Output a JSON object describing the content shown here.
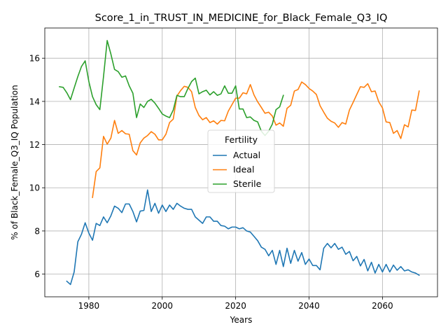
{
  "chart_data": {
    "type": "line",
    "title": "Score_1_in_TRUST_IN_MEDICINE_for_Black_Female_Q3_IQ",
    "xlabel": "Years",
    "ylabel": "% of Black_Female_Q3_IQ Population",
    "xlim": [
      1968,
      2075
    ],
    "ylim": [
      4.95,
      17.4
    ],
    "xticks": [
      1980,
      2000,
      2020,
      2040,
      2060
    ],
    "yticks": [
      6,
      8,
      10,
      12,
      14,
      16
    ],
    "grid": true,
    "legend": {
      "title": "Fertility",
      "placement": "center-right"
    },
    "series": [
      {
        "name": "Actual",
        "color": "#1f77b4",
        "x": [
          1974,
          1975,
          1976,
          1977,
          1978,
          1979,
          1980,
          1981,
          1982,
          1983,
          1984,
          1985,
          1986,
          1987,
          1988,
          1989,
          1990,
          1991,
          1992,
          1993,
          1994,
          1995,
          1996,
          1997,
          1998,
          1999,
          2000,
          2001,
          2002,
          2003,
          2004,
          2005,
          2006,
          2007,
          2008,
          2009,
          2010,
          2011,
          2012,
          2013,
          2014,
          2015,
          2016,
          2017,
          2018,
          2019,
          2020,
          2021,
          2022,
          2023,
          2024,
          2025,
          2026,
          2027,
          2028,
          2029,
          2030,
          2031,
          2032,
          2033,
          2034,
          2035,
          2036,
          2037,
          2038,
          2039,
          2040,
          2041,
          2042,
          2043,
          2044,
          2045,
          2046,
          2047,
          2048,
          2049,
          2050,
          2051,
          2052,
          2053,
          2054,
          2055,
          2056,
          2057,
          2058,
          2059,
          2060,
          2061,
          2062,
          2063,
          2064,
          2065,
          2066,
          2067,
          2068,
          2069,
          2070
        ],
        "values": [
          5.67,
          5.52,
          6.1,
          7.5,
          7.85,
          8.38,
          7.9,
          7.57,
          8.35,
          8.25,
          8.65,
          8.38,
          8.7,
          9.15,
          9.05,
          8.85,
          9.25,
          9.25,
          8.9,
          8.42,
          8.92,
          8.95,
          9.9,
          8.9,
          9.28,
          8.82,
          9.2,
          8.9,
          9.2,
          9.0,
          9.28,
          9.15,
          9.05,
          9.0,
          9.0,
          8.65,
          8.5,
          8.35,
          8.65,
          8.65,
          8.45,
          8.45,
          8.25,
          8.22,
          8.1,
          8.18,
          8.18,
          8.1,
          8.15,
          8.0,
          7.95,
          7.75,
          7.55,
          7.25,
          7.15,
          6.85,
          7.1,
          6.45,
          7.1,
          6.35,
          7.2,
          6.5,
          7.1,
          6.6,
          7.0,
          6.45,
          6.7,
          6.4,
          6.4,
          6.2,
          7.2,
          7.42,
          7.22,
          7.42,
          7.15,
          7.25,
          6.92,
          7.05,
          6.62,
          6.82,
          6.38,
          6.68,
          6.15,
          6.55,
          6.05,
          6.45,
          6.1,
          6.45,
          6.1,
          6.42,
          6.18,
          6.35,
          6.15,
          6.2,
          6.1,
          6.05,
          5.95
        ]
      },
      {
        "name": "Ideal",
        "color": "#ff7f0e",
        "x": [
          1981,
          1982,
          1983,
          1984,
          1985,
          1986,
          1987,
          1988,
          1989,
          1990,
          1991,
          1992,
          1993,
          1994,
          1995,
          1996,
          1997,
          1998,
          1999,
          2000,
          2001,
          2002,
          2003,
          2004,
          2005,
          2006,
          2007,
          2008,
          2009,
          2010,
          2011,
          2012,
          2013,
          2014,
          2015,
          2016,
          2017,
          2018,
          2019,
          2020,
          2021,
          2022,
          2023,
          2024,
          2025,
          2026,
          2027,
          2028,
          2029,
          2030,
          2031,
          2032,
          2033,
          2034,
          2035,
          2036,
          2037,
          2038,
          2039,
          2040,
          2041,
          2042,
          2043,
          2044,
          2045,
          2046,
          2047,
          2048,
          2049,
          2050,
          2051,
          2052,
          2053,
          2054,
          2055,
          2056,
          2057,
          2058,
          2059,
          2060,
          2061,
          2062,
          2063,
          2064,
          2065,
          2066,
          2067,
          2068,
          2069,
          2070
        ],
        "values": [
          9.55,
          10.75,
          10.92,
          12.38,
          12.02,
          12.3,
          13.12,
          12.52,
          12.65,
          12.5,
          12.48,
          11.72,
          11.52,
          12.08,
          12.3,
          12.42,
          12.6,
          12.48,
          12.22,
          12.22,
          12.48,
          13.02,
          13.18,
          14.25,
          14.5,
          14.7,
          14.65,
          14.45,
          13.72,
          13.35,
          13.15,
          13.25,
          13.02,
          13.1,
          12.95,
          13.12,
          13.1,
          13.55,
          13.85,
          14.15,
          14.15,
          14.4,
          14.35,
          14.78,
          14.3,
          13.98,
          13.72,
          13.45,
          13.5,
          13.32,
          12.9,
          13.0,
          12.85,
          13.68,
          13.82,
          14.48,
          14.55,
          14.9,
          14.78,
          14.6,
          14.48,
          14.32,
          13.8,
          13.5,
          13.22,
          13.08,
          13.0,
          12.8,
          13.02,
          12.95,
          13.6,
          13.95,
          14.32,
          14.68,
          14.65,
          14.82,
          14.45,
          14.48,
          13.98,
          13.7,
          13.05,
          13.02,
          12.52,
          12.65,
          12.28,
          12.92,
          12.82,
          13.6,
          13.58,
          14.48
        ]
      },
      {
        "name": "Sterile",
        "color": "#2ca02c",
        "x": [
          1972,
          1973,
          1974,
          1975,
          1976,
          1977,
          1978,
          1979,
          1980,
          1981,
          1982,
          1983,
          1984,
          1985,
          1986,
          1987,
          1988,
          1989,
          1990,
          1991,
          1992,
          1993,
          1994,
          1995,
          1996,
          1997,
          1998,
          1999,
          2000,
          2001,
          2002,
          2003,
          2004,
          2005,
          2006,
          2007,
          2008,
          2009,
          2010,
          2011,
          2012,
          2013,
          2014,
          2015,
          2016,
          2017,
          2018,
          2019,
          2020,
          2021,
          2022,
          2023,
          2024,
          2025,
          2026,
          2027,
          2028,
          2029,
          2030,
          2031,
          2032,
          2033
        ],
        "values": [
          14.68,
          14.65,
          14.4,
          14.08,
          14.62,
          15.15,
          15.62,
          15.88,
          14.92,
          14.22,
          13.85,
          13.62,
          15.15,
          16.82,
          16.2,
          15.48,
          15.38,
          15.12,
          15.18,
          14.72,
          14.38,
          13.25,
          13.88,
          13.72,
          14.0,
          14.1,
          13.92,
          13.68,
          13.42,
          13.32,
          13.25,
          13.6,
          14.28,
          14.22,
          14.22,
          14.6,
          14.92,
          15.08,
          14.35,
          14.45,
          14.52,
          14.3,
          14.45,
          14.28,
          14.35,
          14.72,
          14.38,
          14.38,
          14.72,
          13.65,
          13.65,
          13.25,
          13.28,
          13.12,
          13.05,
          12.62,
          12.42,
          12.62,
          12.95,
          13.62,
          13.75,
          14.28
        ]
      }
    ]
  }
}
